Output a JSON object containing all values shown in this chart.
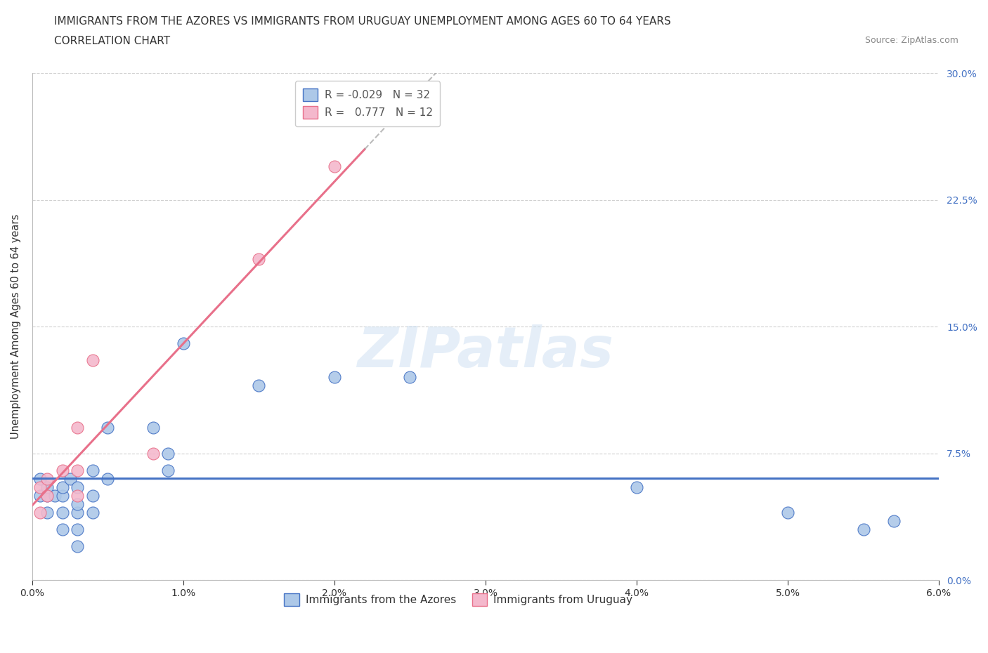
{
  "title_line1": "IMMIGRANTS FROM THE AZORES VS IMMIGRANTS FROM URUGUAY UNEMPLOYMENT AMONG AGES 60 TO 64 YEARS",
  "title_line2": "CORRELATION CHART",
  "source": "Source: ZipAtlas.com",
  "ylabel": "Unemployment Among Ages 60 to 64 years",
  "watermark": "ZIPatlas",
  "xmin": 0.0,
  "xmax": 0.06,
  "ymin": 0.0,
  "ymax": 0.3,
  "xticks": [
    0.0,
    0.01,
    0.02,
    0.03,
    0.04,
    0.05,
    0.06
  ],
  "yticks": [
    0.0,
    0.075,
    0.15,
    0.225,
    0.3
  ],
  "azores_color": "#adc8e8",
  "azores_color_dark": "#4472c4",
  "uruguay_color": "#f4b8cc",
  "uruguay_color_dark": "#e8708a",
  "azores_R": -0.029,
  "azores_N": 32,
  "uruguay_R": 0.777,
  "uruguay_N": 12,
  "azores_x": [
    0.0005,
    0.0005,
    0.001,
    0.001,
    0.001,
    0.0015,
    0.002,
    0.002,
    0.002,
    0.002,
    0.0025,
    0.003,
    0.003,
    0.003,
    0.003,
    0.003,
    0.004,
    0.004,
    0.004,
    0.005,
    0.005,
    0.008,
    0.009,
    0.009,
    0.01,
    0.015,
    0.02,
    0.025,
    0.04,
    0.05,
    0.055,
    0.057
  ],
  "azores_y": [
    0.05,
    0.06,
    0.04,
    0.05,
    0.055,
    0.05,
    0.03,
    0.04,
    0.05,
    0.055,
    0.06,
    0.02,
    0.03,
    0.04,
    0.045,
    0.055,
    0.04,
    0.05,
    0.065,
    0.06,
    0.09,
    0.09,
    0.065,
    0.075,
    0.14,
    0.115,
    0.12,
    0.12,
    0.055,
    0.04,
    0.03,
    0.035
  ],
  "uruguay_x": [
    0.0005,
    0.0005,
    0.001,
    0.001,
    0.002,
    0.003,
    0.003,
    0.003,
    0.004,
    0.008,
    0.015,
    0.02
  ],
  "uruguay_y": [
    0.04,
    0.055,
    0.05,
    0.06,
    0.065,
    0.05,
    0.065,
    0.09,
    0.13,
    0.075,
    0.19,
    0.245
  ],
  "legend_azores": "Immigrants from the Azores",
  "legend_uruguay": "Immigrants from Uruguay",
  "title_fontsize": 11,
  "axis_label_fontsize": 10.5,
  "tick_fontsize": 10,
  "legend_fontsize": 11,
  "right_tick_color": "#4472c4",
  "grid_color": "#cccccc",
  "background_color": "#ffffff"
}
